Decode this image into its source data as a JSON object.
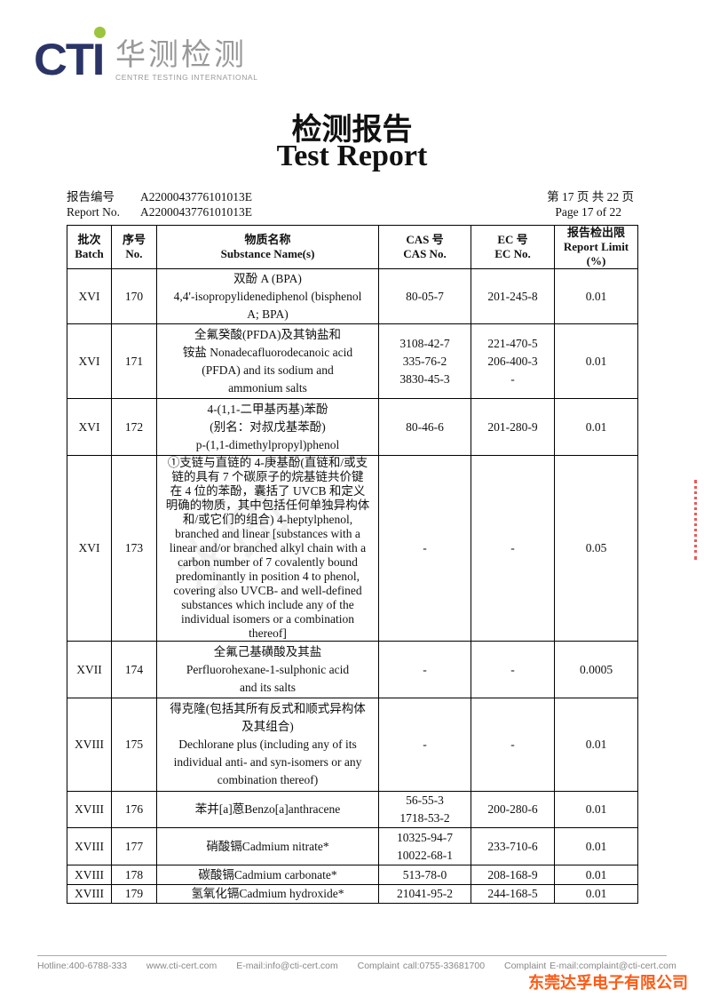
{
  "logo": {
    "brand": "CTI",
    "cn": "华测检测",
    "en": "CENTRE TESTING INTERNATIONAL"
  },
  "title": {
    "cn": "检测报告",
    "en": "Test Report"
  },
  "report": {
    "no_label_cn": "报告编号",
    "no_label_en": "Report No.",
    "no_value": "A2200043776101013E",
    "page_cn": "第 17 页  共 22 页",
    "page_en": "Page 17 of 22"
  },
  "table": {
    "headers": [
      {
        "cn": "批次",
        "en": "Batch"
      },
      {
        "cn": "序号",
        "en": "No."
      },
      {
        "cn": "物质名称",
        "en": "Substance Name(s)"
      },
      {
        "cn": "CAS 号",
        "en": "CAS No."
      },
      {
        "cn": "EC 号",
        "en": "EC No."
      },
      {
        "cn": "报告检出限",
        "en": "Report Limit (%)"
      }
    ],
    "rows": [
      {
        "batch": "XVI",
        "no": "170",
        "name": [
          "双酚 A (BPA)",
          "4,4'-isopropylidenediphenol (bisphenol",
          "A; BPA)"
        ],
        "cas": [
          "80-05-7"
        ],
        "ec": [
          "201-245-8"
        ],
        "limit": "0.01"
      },
      {
        "batch": "XVI",
        "no": "171",
        "name": [
          "全氟癸酸(PFDA)及其钠盐和",
          "铵盐 Nonadecafluorodecanoic acid",
          "(PFDA) and its sodium and",
          "ammonium salts"
        ],
        "cas": [
          "3108-42-7",
          "335-76-2",
          "3830-45-3"
        ],
        "ec": [
          "221-470-5",
          "206-400-3",
          "-"
        ],
        "limit": "0.01"
      },
      {
        "batch": "XVI",
        "no": "172",
        "name": [
          "4-(1,1-二甲基丙基)苯酚",
          "(别名：对叔戊基苯酚)",
          "p-(1,1-dimethylpropyl)phenol"
        ],
        "cas": [
          "80-46-6"
        ],
        "ec": [
          "201-280-9"
        ],
        "limit": "0.01"
      },
      {
        "batch": "XVI",
        "no": "173",
        "name": [
          "①支链与直链的 4-庚基酚(直链和/或支",
          "链的具有 7 个碳原子的烷基链共价键",
          "在 4 位的苯酚，囊括了 UVCB 和定义",
          "明确的物质，其中包括任何单独异构体",
          "和/或它们的组合) 4-heptylphenol,",
          "branched and linear [substances with a",
          "linear and/or branched alkyl chain with a",
          "carbon number of 7 covalently bound",
          "predominantly in position 4 to phenol,",
          "covering also UVCB- and well-defined",
          "substances which include any of the",
          "individual isomers or a combination",
          "thereof]"
        ],
        "cas": [
          "-"
        ],
        "ec": [
          "-"
        ],
        "limit": "0.05"
      },
      {
        "batch": "XVII",
        "no": "174",
        "name": [
          "全氟己基磺酸及其盐",
          "Perfluorohexane-1-sulphonic acid",
          "and its salts"
        ],
        "cas": [
          "-"
        ],
        "ec": [
          "-"
        ],
        "limit": "0.0005"
      },
      {
        "batch": "XVIII",
        "no": "175",
        "name": [
          "得克隆(包括其所有反式和顺式异构体",
          "及其组合)",
          "Dechlorane plus (including any of its",
          "individual anti- and syn-isomers or any",
          "combination thereof)"
        ],
        "cas": [
          "-"
        ],
        "ec": [
          "-"
        ],
        "limit": "0.01"
      },
      {
        "batch": "XVIII",
        "no": "176",
        "name": [
          "苯并[a]蒽Benzo[a]anthracene"
        ],
        "cas": [
          "56-55-3",
          "1718-53-2"
        ],
        "ec": [
          "200-280-6"
        ],
        "limit": "0.01"
      },
      {
        "batch": "XVIII",
        "no": "177",
        "name": [
          "硝酸镉Cadmium nitrate*"
        ],
        "cas": [
          "10325-94-7",
          "10022-68-1"
        ],
        "ec": [
          "233-710-6"
        ],
        "limit": "0.01"
      },
      {
        "batch": "XVIII",
        "no": "178",
        "name": [
          "碳酸镉Cadmium carbonate*"
        ],
        "cas": [
          "513-78-0"
        ],
        "ec": [
          "208-168-9"
        ],
        "limit": "0.01"
      },
      {
        "batch": "XVIII",
        "no": "179",
        "name": [
          "氢氧化镉Cadmium hydroxide*"
        ],
        "cas": [
          "21041-95-2"
        ],
        "ec": [
          "244-168-5"
        ],
        "limit": "0.01"
      }
    ]
  },
  "footer": {
    "hotline": "Hotline:400-6788-333",
    "web": "www.cti-cert.com",
    "email": "E-mail:info@cti-cert.com",
    "complaint_call": "Complaint call:0755-33681700",
    "complaint_email": "Complaint E-mail:complaint@cti-cert.com"
  },
  "stamp_company": "东莞达孚电子有限公司",
  "colors": {
    "brand": "#2b3466",
    "accent": "#9bc53d",
    "stamp": "#ff5a14"
  }
}
